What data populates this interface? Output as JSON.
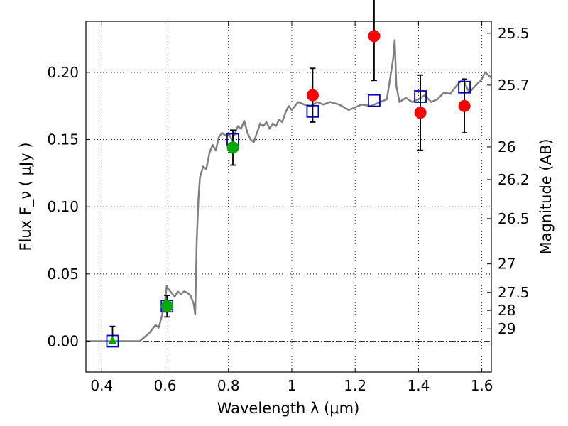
{
  "chart_data": {
    "type": "scatter",
    "title": "",
    "xlabel": "Wavelength  λ (μm)",
    "ylabel": "Flux  F_ν  ( μJy )",
    "ylabel_right": "Magnitude (AB)",
    "xlim": [
      0.35,
      1.63
    ],
    "ylim": [
      -0.023,
      0.238
    ],
    "grid": true,
    "x_ticks": [
      0.4,
      0.6,
      0.8,
      1.0,
      1.2,
      1.4,
      1.6
    ],
    "x_tick_labels": [
      "0.4",
      "0.6",
      "0.8",
      "1",
      "1.2",
      "1.4",
      "1.6"
    ],
    "y_ticks": [
      0.0,
      0.05,
      0.1,
      0.15,
      0.2
    ],
    "y_tick_labels": [
      "0.00",
      "0.05",
      "0.10",
      "0.15",
      "0.20"
    ],
    "right_ticks": [
      {
        "label": "25.5",
        "flux": 0.2291
      },
      {
        "label": "25.7",
        "flux": 0.1905
      },
      {
        "label": "26",
        "flux": 0.1445
      },
      {
        "label": "26.2",
        "flux": 0.1202
      },
      {
        "label": "26.5",
        "flux": 0.0912
      },
      {
        "label": "27",
        "flux": 0.0575
      },
      {
        "label": "27.5",
        "flux": 0.0363
      },
      {
        "label": "28",
        "flux": 0.0229
      },
      {
        "label": "29",
        "flux": 0.0091
      }
    ],
    "series": [
      {
        "kind": "line",
        "color": "#808080",
        "points": [
          [
            0.35,
            0.0
          ],
          [
            0.52,
            0.0
          ],
          [
            0.55,
            0.006
          ],
          [
            0.57,
            0.012
          ],
          [
            0.58,
            0.01
          ],
          [
            0.59,
            0.019
          ],
          [
            0.6,
            0.03
          ],
          [
            0.605,
            0.041
          ],
          [
            0.61,
            0.039
          ],
          [
            0.62,
            0.036
          ],
          [
            0.63,
            0.033
          ],
          [
            0.64,
            0.037
          ],
          [
            0.65,
            0.035
          ],
          [
            0.66,
            0.037
          ],
          [
            0.67,
            0.036
          ],
          [
            0.68,
            0.034
          ],
          [
            0.69,
            0.028
          ],
          [
            0.695,
            0.02
          ],
          [
            0.7,
            0.075
          ],
          [
            0.705,
            0.105
          ],
          [
            0.71,
            0.122
          ],
          [
            0.72,
            0.13
          ],
          [
            0.73,
            0.128
          ],
          [
            0.74,
            0.14
          ],
          [
            0.75,
            0.146
          ],
          [
            0.76,
            0.142
          ],
          [
            0.77,
            0.152
          ],
          [
            0.78,
            0.155
          ],
          [
            0.79,
            0.153
          ],
          [
            0.8,
            0.155
          ],
          [
            0.81,
            0.15
          ],
          [
            0.82,
            0.154
          ],
          [
            0.83,
            0.16
          ],
          [
            0.84,
            0.158
          ],
          [
            0.85,
            0.164
          ],
          [
            0.86,
            0.155
          ],
          [
            0.87,
            0.15
          ],
          [
            0.88,
            0.148
          ],
          [
            0.89,
            0.155
          ],
          [
            0.9,
            0.162
          ],
          [
            0.91,
            0.16
          ],
          [
            0.92,
            0.163
          ],
          [
            0.93,
            0.158
          ],
          [
            0.94,
            0.162
          ],
          [
            0.95,
            0.16
          ],
          [
            0.96,
            0.165
          ],
          [
            0.97,
            0.163
          ],
          [
            0.98,
            0.17
          ],
          [
            0.99,
            0.175
          ],
          [
            1.0,
            0.172
          ],
          [
            1.02,
            0.178
          ],
          [
            1.04,
            0.176
          ],
          [
            1.06,
            0.175
          ],
          [
            1.08,
            0.178
          ],
          [
            1.1,
            0.176
          ],
          [
            1.12,
            0.178
          ],
          [
            1.15,
            0.176
          ],
          [
            1.18,
            0.172
          ],
          [
            1.2,
            0.174
          ],
          [
            1.22,
            0.176
          ],
          [
            1.25,
            0.175
          ],
          [
            1.28,
            0.178
          ],
          [
            1.3,
            0.18
          ],
          [
            1.31,
            0.195
          ],
          [
            1.32,
            0.21
          ],
          [
            1.325,
            0.224
          ],
          [
            1.33,
            0.19
          ],
          [
            1.34,
            0.178
          ],
          [
            1.36,
            0.181
          ],
          [
            1.38,
            0.178
          ],
          [
            1.4,
            0.18
          ],
          [
            1.42,
            0.183
          ],
          [
            1.44,
            0.178
          ],
          [
            1.46,
            0.18
          ],
          [
            1.48,
            0.185
          ],
          [
            1.5,
            0.184
          ],
          [
            1.52,
            0.19
          ],
          [
            1.54,
            0.195
          ],
          [
            1.56,
            0.185
          ],
          [
            1.58,
            0.19
          ],
          [
            1.6,
            0.195
          ],
          [
            1.61,
            0.2
          ],
          [
            1.63,
            0.196
          ]
        ]
      },
      {
        "kind": "squares",
        "color": "#0000cc",
        "points": [
          [
            0.434,
            0.0
          ],
          [
            0.606,
            0.026
          ],
          [
            0.814,
            0.15
          ],
          [
            1.066,
            0.171
          ],
          [
            1.26,
            0.179
          ],
          [
            1.406,
            0.182
          ],
          [
            1.545,
            0.189
          ]
        ]
      },
      {
        "kind": "circles",
        "color": "#ff0000",
        "points": [
          {
            "x": 1.066,
            "y": 0.183,
            "err": 0.02
          },
          {
            "x": 1.26,
            "y": 0.227,
            "err": 0.033
          },
          {
            "x": 1.406,
            "y": 0.17,
            "err": 0.028
          },
          {
            "x": 1.545,
            "y": 0.175,
            "err": 0.02
          }
        ]
      },
      {
        "kind": "circles",
        "color": "#00aa00",
        "points": [
          {
            "x": 0.606,
            "y": 0.026,
            "err": 0.008
          },
          {
            "x": 0.814,
            "y": 0.144,
            "err": 0.013
          }
        ]
      },
      {
        "kind": "triangles",
        "color": "#00aa00",
        "points": [
          {
            "x": 0.434,
            "y": 0.0,
            "err_up": 0.011
          }
        ]
      }
    ]
  }
}
